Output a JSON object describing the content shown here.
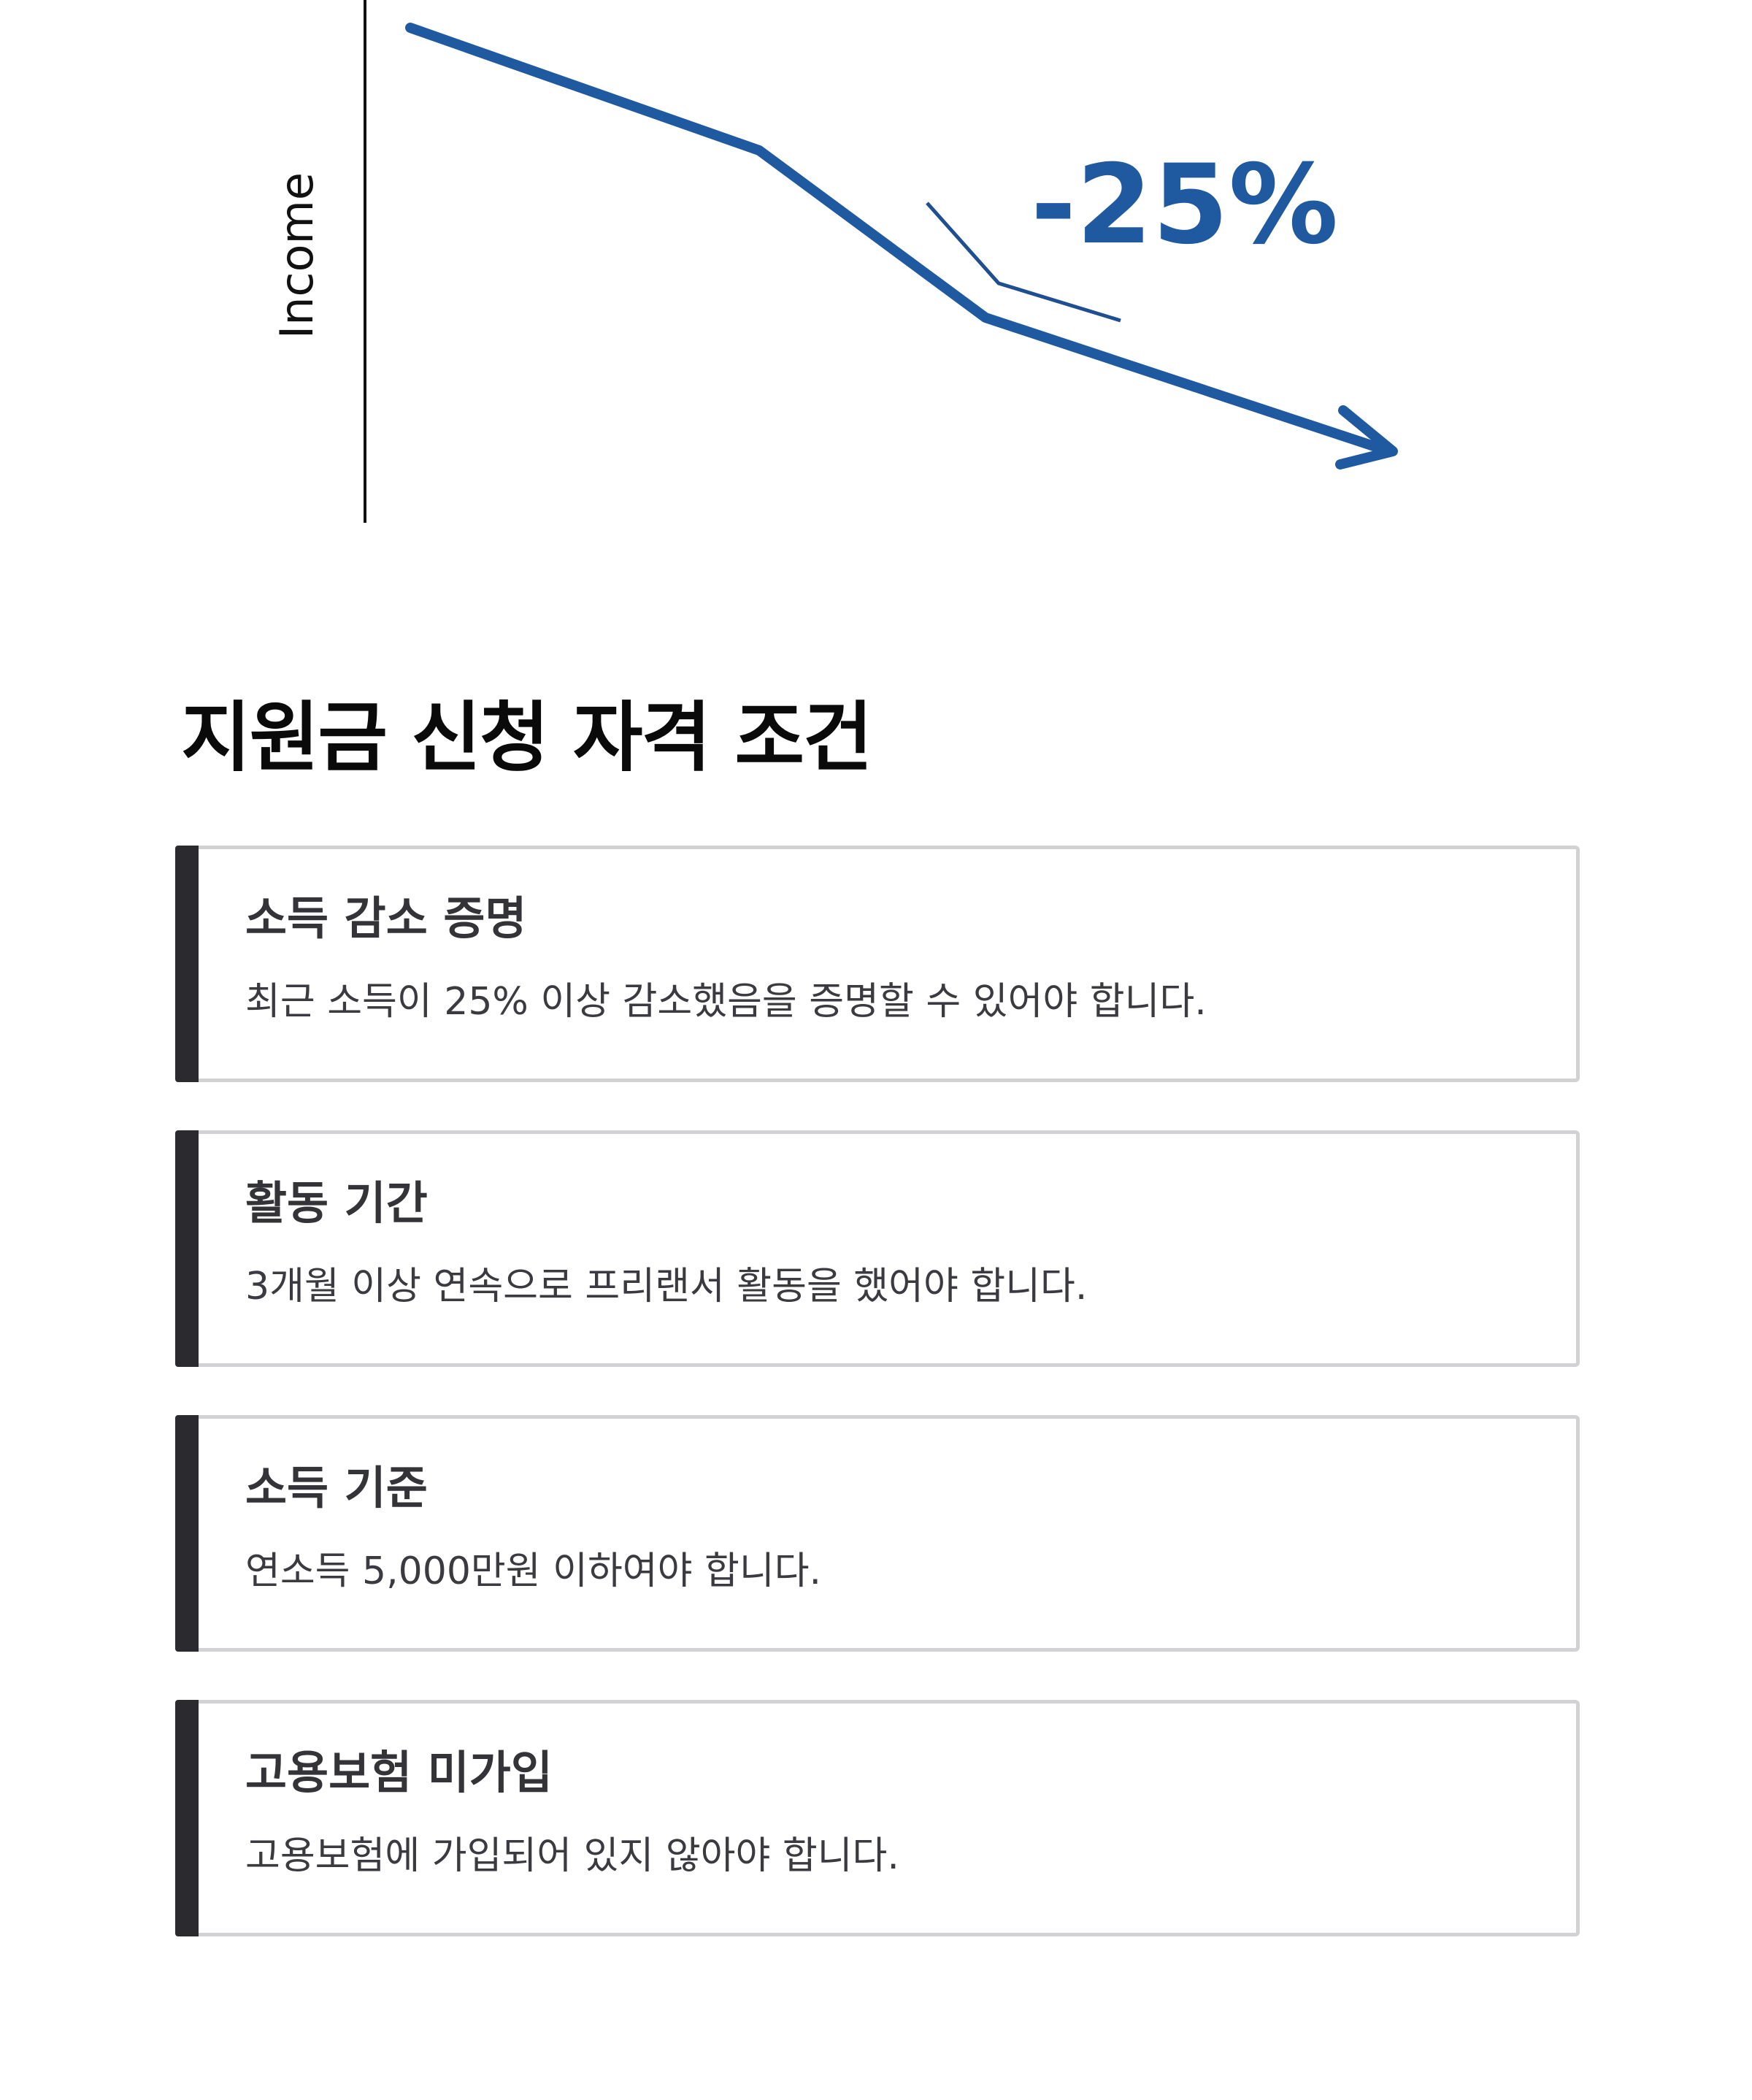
{
  "chart": {
    "axis_label": "Income",
    "change_label": "-25%",
    "line_color": "#1f5aa0",
    "axis_color": "#111111"
  },
  "chart_data": {
    "type": "line",
    "title": "",
    "xlabel": "",
    "ylabel": "Income",
    "annotations": [
      "-25%"
    ],
    "grid": false,
    "series": [
      {
        "values": [
          100,
          85,
          60,
          40
        ]
      }
    ]
  },
  "section": {
    "title": "지원금 신청 자격 조건"
  },
  "criteria": [
    {
      "title": "소득 감소 증명",
      "description": "최근 소득이 25% 이상 감소했음을 증명할 수 있어야 합니다."
    },
    {
      "title": "활동 기간",
      "description": "3개월 이상 연속으로 프리랜서 활동을 했어야 합니다."
    },
    {
      "title": "소득 기준",
      "description": "연소득 5,000만원 이하여야 합니다."
    },
    {
      "title": "고용보험 미가입",
      "description": "고용보험에 가입되어 있지 않아야 합니다."
    }
  ],
  "colors": {
    "accent_bar": "#2b2b2f",
    "card_border": "#d2d2d4",
    "line_blue": "#1f5aa0"
  }
}
